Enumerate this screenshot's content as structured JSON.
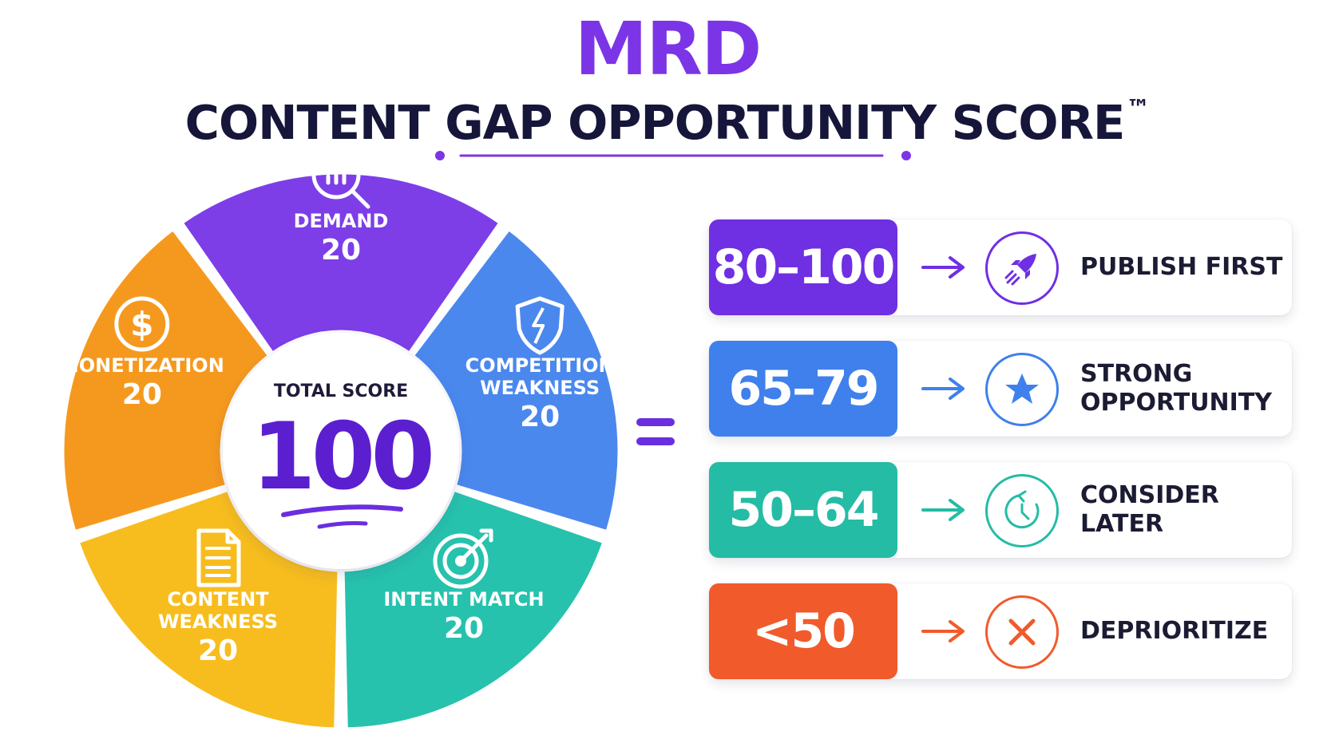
{
  "header": {
    "brand": "MRD",
    "headline": "CONTENT GAP OPPORTUNITY SCORE",
    "trademark": "™"
  },
  "wheel": {
    "center_label": "TOTAL SCORE",
    "center_total": "100",
    "segments": [
      {
        "id": "demand",
        "label_line1": "DEMAND",
        "label_line2": "",
        "points": "20",
        "color": "#7d3ee8",
        "icon": "magnifier-chart-icon"
      },
      {
        "id": "competition",
        "label_line1": "COMPETITION",
        "label_line2": "WEAKNESS",
        "points": "20",
        "color": "#4a88ee",
        "icon": "shield-icon"
      },
      {
        "id": "intent",
        "label_line1": "INTENT MATCH",
        "label_line2": "",
        "points": "20",
        "color": "#26c2ad",
        "icon": "target-icon"
      },
      {
        "id": "content",
        "label_line1": "CONTENT",
        "label_line2": "WEAKNESS",
        "points": "20",
        "color": "#f7bd1e",
        "icon": "document-icon"
      },
      {
        "id": "monetization",
        "label_line1": "MONETIZATION",
        "label_line2": "",
        "points": "20",
        "color": "#f5991e",
        "icon": "dollar-icon"
      }
    ]
  },
  "tiers": [
    {
      "range": "80–100",
      "action": "PUBLISH FIRST",
      "color": "#6f2fe3",
      "icon": "rocket-icon"
    },
    {
      "range": "65–79",
      "action": "STRONG\nOPPORTUNITY",
      "color": "#3f80ec",
      "icon": "star-icon"
    },
    {
      "range": "50–64",
      "action": "CONSIDER\nLATER",
      "color": "#24bca5",
      "icon": "clock-icon"
    },
    {
      "range": "<50",
      "action": "DEPRIORITIZE",
      "color": "#f15a2b",
      "icon": "x-icon"
    }
  ]
}
